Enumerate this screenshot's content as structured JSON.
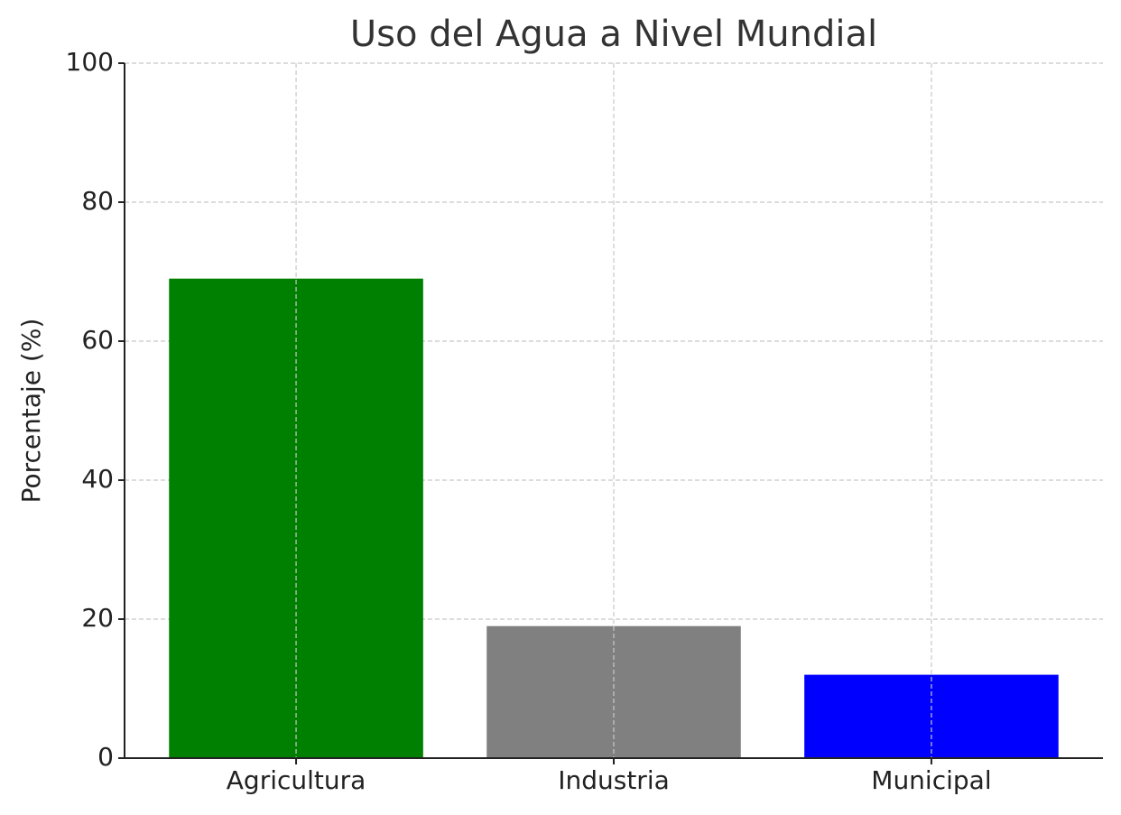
{
  "chart_data": {
    "type": "bar",
    "title": "Uso del Agua a Nivel Mundial",
    "y_label": "Porcentaje (%)",
    "categories": [
      "Agricultura",
      "Industria",
      "Municipal"
    ],
    "values": [
      69,
      19,
      12
    ],
    "colors": [
      "#008000",
      "#808080",
      "#0000ff"
    ],
    "ylim": [
      0,
      100
    ],
    "yticks": [
      0,
      20,
      40,
      60,
      80,
      100
    ],
    "grid": true
  }
}
